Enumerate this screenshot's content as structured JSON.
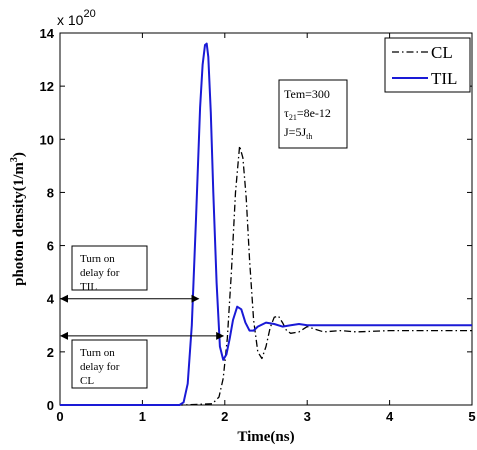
{
  "chart_data": {
    "type": "line",
    "title": "",
    "xlabel": "Time(ns)",
    "ylabel": "photon density(1/m",
    "ylabel_sup": "3",
    "ylabel_end": ")",
    "y_multiplier": {
      "base": "x 10",
      "exp": "20"
    },
    "xlim": [
      0,
      5
    ],
    "ylim": [
      0,
      14
    ],
    "xticks": [
      0,
      1,
      2,
      3,
      4,
      5
    ],
    "yticks": [
      0,
      2,
      4,
      6,
      8,
      10,
      12,
      14
    ],
    "xtick_labels": [
      "0",
      "1",
      "2",
      "3",
      "4",
      "5"
    ],
    "ytick_labels": [
      "0",
      "2",
      "4",
      "6",
      "8",
      "10",
      "12",
      "14"
    ],
    "grid": false,
    "legend": {
      "position": "top-right",
      "entries": [
        "CL",
        "TIL"
      ]
    },
    "series": [
      {
        "name": "CL",
        "style": "dash-dot",
        "color": "#000000",
        "x": [
          0,
          1.5,
          1.85,
          1.93,
          1.98,
          2.03,
          2.08,
          2.13,
          2.18,
          2.22,
          2.26,
          2.3,
          2.35,
          2.4,
          2.45,
          2.5,
          2.55,
          2.6,
          2.65,
          2.7,
          2.75,
          2.8,
          2.9,
          3.0,
          3.1,
          3.2,
          3.4,
          3.6,
          4.0,
          4.5,
          5.0
        ],
        "y": [
          0,
          0,
          0.05,
          0.3,
          1.0,
          2.5,
          5.0,
          8.0,
          9.75,
          9.3,
          7.8,
          5.5,
          3.2,
          2.0,
          1.75,
          2.2,
          2.9,
          3.3,
          3.35,
          3.1,
          2.8,
          2.7,
          2.75,
          2.95,
          2.85,
          2.75,
          2.8,
          2.75,
          2.8,
          2.8,
          2.8
        ]
      },
      {
        "name": "TIL",
        "style": "solid",
        "color": "#1a1ad6",
        "x": [
          0,
          1.45,
          1.5,
          1.55,
          1.6,
          1.65,
          1.7,
          1.73,
          1.76,
          1.78,
          1.8,
          1.83,
          1.86,
          1.9,
          1.94,
          1.98,
          2.02,
          2.06,
          2.1,
          2.15,
          2.2,
          2.25,
          2.3,
          2.35,
          2.4,
          2.5,
          2.6,
          2.7,
          2.8,
          2.9,
          3.0,
          3.2,
          3.5,
          4.0,
          4.5,
          5.0
        ],
        "y": [
          0,
          0,
          0.1,
          0.8,
          3.0,
          7.0,
          11.2,
          12.8,
          13.55,
          13.6,
          13.1,
          11.0,
          8.0,
          4.6,
          2.2,
          1.7,
          1.9,
          2.5,
          3.2,
          3.7,
          3.6,
          3.1,
          2.8,
          2.8,
          2.95,
          3.1,
          3.05,
          2.95,
          3.0,
          3.05,
          3.0,
          3.0,
          3.0,
          3.0,
          3.0,
          3.0
        ]
      }
    ],
    "annotations": {
      "params": {
        "tem": "Tem=300",
        "tau_main": "τ",
        "tau_sub": "21",
        "tau_rest": "=8e-12",
        "j_main": "J=5J",
        "j_sub": "th"
      },
      "til_note": [
        "Turn on",
        "delay for",
        "TIL"
      ],
      "cl_note": [
        "Turn on",
        "delay for",
        "CL"
      ],
      "til_arrow": {
        "from_x": 0,
        "to_x": 1.68,
        "y": 4
      },
      "cl_arrow": {
        "from_x": 0,
        "to_x": 1.98,
        "y": 2.6
      }
    }
  }
}
